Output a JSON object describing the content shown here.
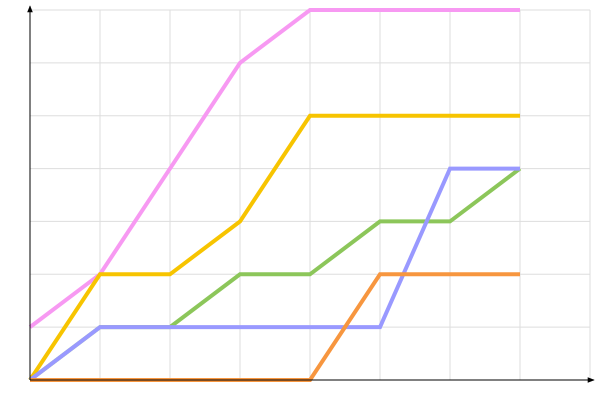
{
  "chart_data": {
    "type": "line",
    "x": [
      0,
      1,
      2,
      3,
      4,
      5,
      6,
      7
    ],
    "series": [
      {
        "color": "#f799f2",
        "values": [
          1,
          2,
          4,
          6,
          7,
          7,
          7,
          7
        ]
      },
      {
        "color": "#f7c400",
        "values": [
          0,
          2,
          2,
          3,
          5,
          5,
          5,
          5
        ]
      },
      {
        "color": "#8cc65a",
        "values": [
          0,
          1,
          1,
          2,
          2,
          3,
          3,
          4
        ]
      },
      {
        "color": "#9999ff",
        "values": [
          0,
          1,
          1,
          1,
          1,
          1,
          4,
          4
        ]
      },
      {
        "color": "#f7963f",
        "values": [
          0,
          0,
          0,
          0,
          0,
          2,
          2,
          2
        ]
      }
    ],
    "xlim": [
      0,
      8
    ],
    "xticks": [
      0,
      1,
      2,
      3,
      4,
      5,
      6,
      7,
      8
    ],
    "ylim": [
      0,
      7
    ],
    "yticks": [
      0,
      1,
      2,
      3,
      4,
      5,
      6,
      7
    ],
    "grid": true
  }
}
